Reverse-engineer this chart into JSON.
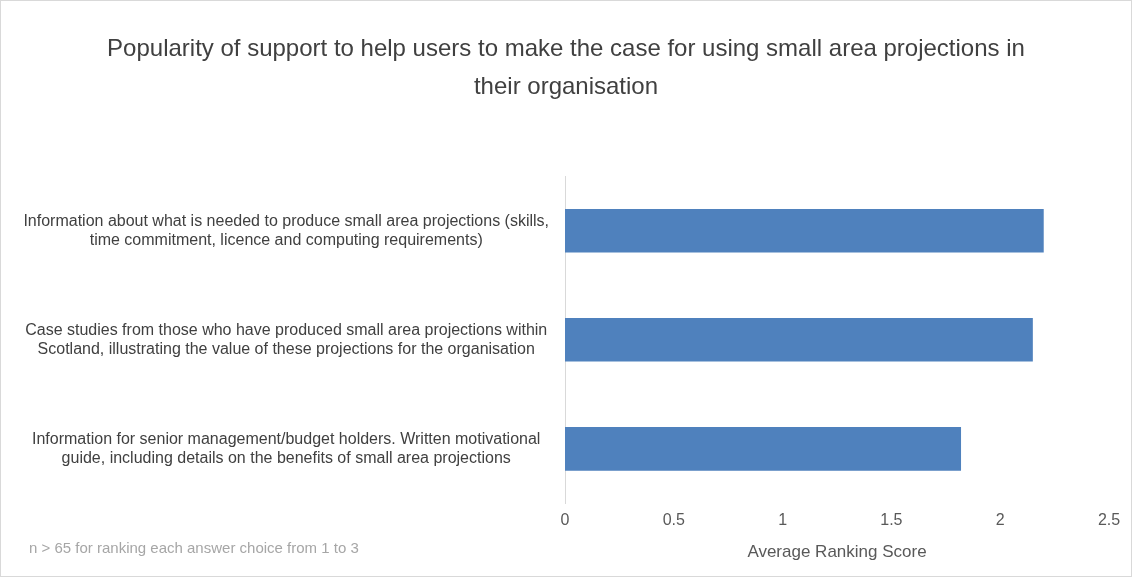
{
  "chart_data": {
    "type": "bar",
    "orientation": "horizontal",
    "title": "Popularity of support to help users to make the case for using small area projections in their organisation",
    "categories": [
      "Information about what is needed to produce small area projections (skills, time commitment, licence and computing requirements)",
      "Case studies from those who have produced small area projections within Scotland, illustrating the value of these projections for the organisation",
      "Information for senior management/budget holders. Written motivational guide, including details on the benefits of small area projections"
    ],
    "values": [
      2.2,
      2.15,
      1.82
    ],
    "color": "#4f81bd",
    "xlim": [
      0,
      2.5
    ],
    "xticks": [
      0,
      0.5,
      1,
      1.5,
      2,
      2.5
    ],
    "xlabel": "Average Ranking Score",
    "grid": false,
    "legend": false,
    "annotations": [
      "n > 65 for ranking each answer choice from 1 to 3"
    ]
  }
}
